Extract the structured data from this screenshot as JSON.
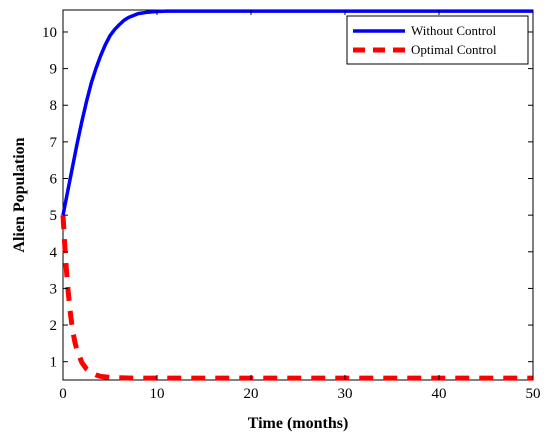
{
  "chart_data": {
    "type": "line",
    "title": "",
    "xlabel": "Time (months)",
    "ylabel": "Alien Population",
    "xlim": [
      0,
      50
    ],
    "ylim": [
      0.5,
      10.6
    ],
    "xticks": [
      0,
      10,
      20,
      30,
      40,
      50
    ],
    "yticks": [
      1,
      2,
      3,
      4,
      5,
      6,
      7,
      8,
      9,
      10
    ],
    "grid": false,
    "legend_position": "top-right",
    "series": [
      {
        "name": "Without Control",
        "color": "#0000ff",
        "style": "solid",
        "x": [
          0,
          0.5,
          1,
          1.5,
          2,
          2.5,
          3,
          3.5,
          4,
          4.5,
          5,
          5.5,
          6,
          6.5,
          7,
          7.5,
          8,
          9,
          10,
          11,
          12,
          14,
          16,
          20,
          25,
          30,
          35,
          40,
          45,
          50
        ],
        "y": [
          5.0,
          5.65,
          6.3,
          6.95,
          7.55,
          8.1,
          8.6,
          9.0,
          9.35,
          9.65,
          9.9,
          10.07,
          10.2,
          10.32,
          10.4,
          10.45,
          10.5,
          10.54,
          10.56,
          10.57,
          10.57,
          10.57,
          10.57,
          10.57,
          10.57,
          10.57,
          10.57,
          10.57,
          10.57,
          10.57
        ]
      },
      {
        "name": "Optimal Control",
        "color": "#ff0000",
        "style": "dashed",
        "x": [
          0,
          0.25,
          0.5,
          0.75,
          1,
          1.25,
          1.5,
          2,
          2.5,
          3,
          3.5,
          4,
          5,
          6,
          8,
          10,
          15,
          20,
          25,
          30,
          35,
          40,
          45,
          50
        ],
        "y": [
          5.0,
          3.9,
          3.05,
          2.4,
          1.9,
          1.55,
          1.3,
          0.98,
          0.8,
          0.7,
          0.64,
          0.6,
          0.57,
          0.56,
          0.55,
          0.55,
          0.55,
          0.55,
          0.55,
          0.55,
          0.55,
          0.55,
          0.55,
          0.55
        ]
      }
    ]
  }
}
